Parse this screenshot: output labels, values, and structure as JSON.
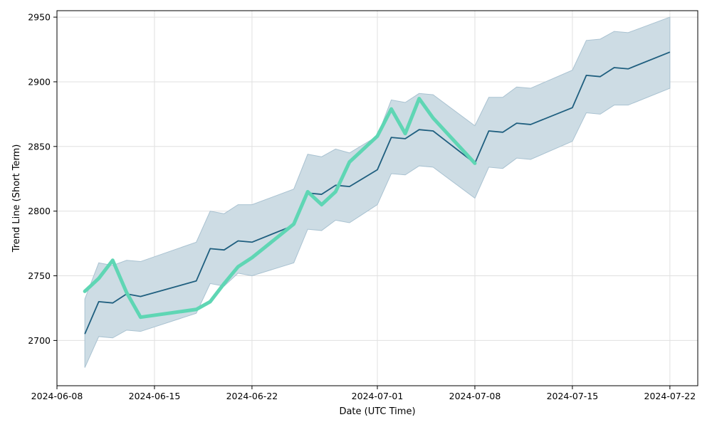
{
  "chart_data": {
    "type": "line",
    "title": "",
    "xlabel": "Date (UTC Time)",
    "ylabel": "Trend Line (Short Term)",
    "xlim": [
      "2024-06-08",
      "2024-07-24"
    ],
    "ylim": [
      2665,
      2955
    ],
    "grid": true,
    "x_tick_labels": [
      "2024-06-08",
      "2024-06-15",
      "2024-06-22",
      "2024-07-01",
      "2024-07-08",
      "2024-07-15",
      "2024-07-22"
    ],
    "y_tick_labels": [
      "2700",
      "2750",
      "2800",
      "2850",
      "2900",
      "2950"
    ],
    "colors": {
      "trend": "#1f5f7f",
      "band_fill": "#cddce4",
      "band_edge": "#a9c2d1",
      "actual": "#5fd6b4",
      "grid": "#e0e0e0"
    },
    "series": [
      {
        "style": "trend",
        "points": [
          [
            "2024-06-10",
            2705
          ],
          [
            "2024-06-11",
            2730
          ],
          [
            "2024-06-12",
            2729
          ],
          [
            "2024-06-13",
            2736
          ],
          [
            "2024-06-14",
            2734
          ],
          [
            "2024-06-18",
            2746
          ],
          [
            "2024-06-19",
            2771
          ],
          [
            "2024-06-20",
            2770
          ],
          [
            "2024-06-21",
            2777
          ],
          [
            "2024-06-22",
            2776
          ],
          [
            "2024-06-25",
            2789
          ],
          [
            "2024-06-26",
            2814
          ],
          [
            "2024-06-27",
            2813
          ],
          [
            "2024-06-28",
            2820
          ],
          [
            "2024-06-29",
            2819
          ],
          [
            "2024-07-01",
            2832
          ],
          [
            "2024-07-02",
            2857
          ],
          [
            "2024-07-03",
            2856
          ],
          [
            "2024-07-04",
            2863
          ],
          [
            "2024-07-05",
            2862
          ],
          [
            "2024-07-08",
            2837
          ],
          [
            "2024-07-09",
            2862
          ],
          [
            "2024-07-10",
            2861
          ],
          [
            "2024-07-11",
            2868
          ],
          [
            "2024-07-12",
            2867
          ],
          [
            "2024-07-15",
            2880
          ],
          [
            "2024-07-16",
            2905
          ],
          [
            "2024-07-17",
            2904
          ],
          [
            "2024-07-18",
            2911
          ],
          [
            "2024-07-19",
            2910
          ],
          [
            "2024-07-22",
            2923
          ]
        ]
      },
      {
        "style": "band_upper",
        "points": [
          [
            "2024-06-10",
            2732
          ],
          [
            "2024-06-11",
            2760
          ],
          [
            "2024-06-12",
            2758
          ],
          [
            "2024-06-13",
            2762
          ],
          [
            "2024-06-14",
            2761
          ],
          [
            "2024-06-18",
            2776
          ],
          [
            "2024-06-19",
            2800
          ],
          [
            "2024-06-20",
            2798
          ],
          [
            "2024-06-21",
            2805
          ],
          [
            "2024-06-22",
            2805
          ],
          [
            "2024-06-25",
            2817
          ],
          [
            "2024-06-26",
            2844
          ],
          [
            "2024-06-27",
            2842
          ],
          [
            "2024-06-28",
            2848
          ],
          [
            "2024-06-29",
            2845
          ],
          [
            "2024-07-01",
            2858
          ],
          [
            "2024-07-02",
            2886
          ],
          [
            "2024-07-03",
            2884
          ],
          [
            "2024-07-04",
            2891
          ],
          [
            "2024-07-05",
            2890
          ],
          [
            "2024-07-08",
            2866
          ],
          [
            "2024-07-09",
            2888
          ],
          [
            "2024-07-10",
            2888
          ],
          [
            "2024-07-11",
            2896
          ],
          [
            "2024-07-12",
            2895
          ],
          [
            "2024-07-15",
            2909
          ],
          [
            "2024-07-16",
            2932
          ],
          [
            "2024-07-17",
            2933
          ],
          [
            "2024-07-18",
            2939
          ],
          [
            "2024-07-19",
            2938
          ],
          [
            "2024-07-22",
            2950
          ]
        ]
      },
      {
        "style": "band_lower",
        "points": [
          [
            "2024-06-10",
            2679
          ],
          [
            "2024-06-11",
            2703
          ],
          [
            "2024-06-12",
            2702
          ],
          [
            "2024-06-13",
            2708
          ],
          [
            "2024-06-14",
            2707
          ],
          [
            "2024-06-18",
            2721
          ],
          [
            "2024-06-19",
            2744
          ],
          [
            "2024-06-20",
            2742
          ],
          [
            "2024-06-21",
            2752
          ],
          [
            "2024-06-22",
            2750
          ],
          [
            "2024-06-25",
            2760
          ],
          [
            "2024-06-26",
            2786
          ],
          [
            "2024-06-27",
            2785
          ],
          [
            "2024-06-28",
            2793
          ],
          [
            "2024-06-29",
            2791
          ],
          [
            "2024-07-01",
            2805
          ],
          [
            "2024-07-02",
            2829
          ],
          [
            "2024-07-03",
            2828
          ],
          [
            "2024-07-04",
            2835
          ],
          [
            "2024-07-05",
            2834
          ],
          [
            "2024-07-08",
            2810
          ],
          [
            "2024-07-09",
            2834
          ],
          [
            "2024-07-10",
            2833
          ],
          [
            "2024-07-11",
            2841
          ],
          [
            "2024-07-12",
            2840
          ],
          [
            "2024-07-15",
            2854
          ],
          [
            "2024-07-16",
            2876
          ],
          [
            "2024-07-17",
            2875
          ],
          [
            "2024-07-18",
            2882
          ],
          [
            "2024-07-19",
            2882
          ],
          [
            "2024-07-22",
            2895
          ]
        ]
      },
      {
        "style": "actual",
        "points": [
          [
            "2024-06-10",
            2738
          ],
          [
            "2024-06-11",
            2748
          ],
          [
            "2024-06-12",
            2762
          ],
          [
            "2024-06-13",
            2737
          ],
          [
            "2024-06-14",
            2718
          ],
          [
            "2024-06-18",
            2724
          ],
          [
            "2024-06-19",
            2730
          ],
          [
            "2024-06-20",
            2744
          ],
          [
            "2024-06-21",
            2757
          ],
          [
            "2024-06-22",
            2764
          ],
          [
            "2024-06-25",
            2790
          ],
          [
            "2024-06-26",
            2815
          ],
          [
            "2024-06-27",
            2805
          ],
          [
            "2024-06-28",
            2815
          ],
          [
            "2024-06-29",
            2838
          ],
          [
            "2024-07-01",
            2858
          ],
          [
            "2024-07-02",
            2879
          ],
          [
            "2024-07-03",
            2860
          ],
          [
            "2024-07-04",
            2887
          ],
          [
            "2024-07-05",
            2872
          ],
          [
            "2024-07-08",
            2837
          ]
        ]
      }
    ]
  }
}
